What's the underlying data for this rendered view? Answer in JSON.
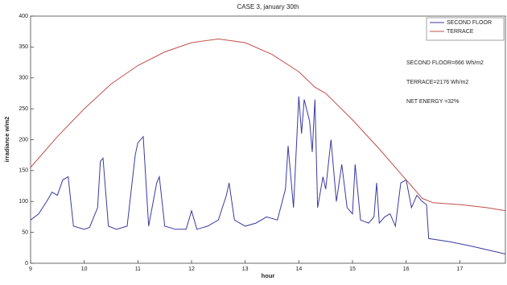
{
  "chart_data": {
    "type": "line",
    "title": "CASE 3, january 30th",
    "xlabel": "hour",
    "ylabel": "irradiance w/m2",
    "xlim": [
      9,
      17.85
    ],
    "ylim": [
      0,
      400
    ],
    "xticks": [
      9,
      10,
      11,
      12,
      13,
      14,
      15,
      16,
      17
    ],
    "yticks": [
      0,
      50,
      100,
      150,
      200,
      250,
      300,
      350,
      400
    ],
    "legend": "upper right",
    "annotations": [
      "SECOND FLOOR=666 Wh/m2",
      "TERRACE=2176 Wh/m2",
      "NET ENERGY =32%"
    ],
    "series": [
      {
        "name": "SECOND FLOOR",
        "color": "#3a3aa0",
        "x": [
          9.0,
          9.15,
          9.3,
          9.4,
          9.5,
          9.6,
          9.7,
          9.8,
          10.0,
          10.1,
          10.25,
          10.3,
          10.35,
          10.45,
          10.6,
          10.8,
          10.95,
          11.0,
          11.1,
          11.2,
          11.35,
          11.4,
          11.5,
          11.7,
          11.9,
          12.0,
          12.1,
          12.3,
          12.5,
          12.65,
          12.7,
          12.8,
          13.0,
          13.2,
          13.4,
          13.6,
          13.75,
          13.8,
          13.9,
          14.0,
          14.05,
          14.1,
          14.2,
          14.25,
          14.3,
          14.35,
          14.45,
          14.5,
          14.6,
          14.7,
          14.8,
          14.9,
          15.0,
          15.05,
          15.15,
          15.3,
          15.4,
          15.45,
          15.5,
          15.6,
          15.7,
          15.8,
          15.9,
          16.0,
          16.1,
          16.2,
          16.3,
          16.38,
          16.42,
          16.8,
          17.2,
          17.6,
          17.85
        ],
        "values": [
          70,
          80,
          100,
          115,
          110,
          135,
          140,
          60,
          55,
          58,
          90,
          165,
          170,
          60,
          55,
          60,
          175,
          195,
          205,
          60,
          130,
          140,
          60,
          55,
          55,
          85,
          55,
          60,
          70,
          110,
          130,
          70,
          60,
          65,
          75,
          70,
          120,
          190,
          90,
          270,
          210,
          265,
          230,
          180,
          265,
          90,
          140,
          120,
          200,
          100,
          160,
          90,
          80,
          160,
          70,
          65,
          75,
          130,
          65,
          75,
          80,
          60,
          130,
          135,
          90,
          110,
          100,
          95,
          40,
          35,
          28,
          20,
          15
        ]
      },
      {
        "name": "TERRACE",
        "color": "#c0504d",
        "x": [
          9.0,
          9.5,
          10.0,
          10.5,
          11.0,
          11.5,
          12.0,
          12.5,
          13.0,
          13.5,
          14.0,
          14.3,
          14.5,
          15.0,
          15.5,
          16.0,
          16.3,
          16.5,
          17.0,
          17.5,
          17.85
        ],
        "values": [
          155,
          205,
          250,
          290,
          320,
          342,
          357,
          363,
          357,
          338,
          310,
          285,
          275,
          232,
          185,
          135,
          105,
          98,
          95,
          90,
          85
        ]
      }
    ]
  }
}
